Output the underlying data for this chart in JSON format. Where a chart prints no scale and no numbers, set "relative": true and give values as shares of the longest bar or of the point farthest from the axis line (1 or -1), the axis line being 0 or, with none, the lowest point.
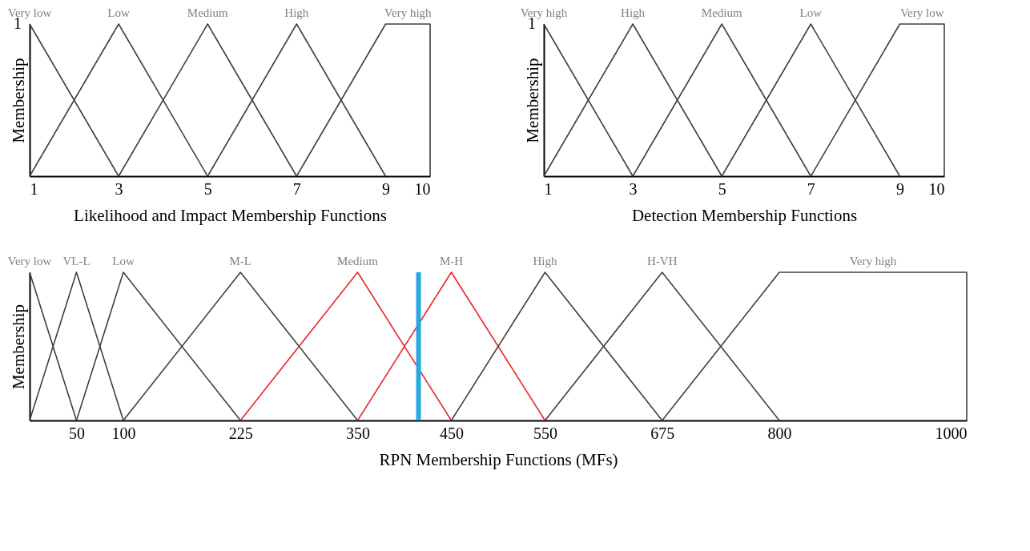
{
  "chart_data": [
    {
      "type": "line",
      "relative": true,
      "xlabel": "Likelihood and Impact Membership Functions",
      "ylabel": "Membership",
      "xlim": [
        1,
        10
      ],
      "xticks": [
        1,
        3,
        5,
        7,
        9,
        10
      ],
      "annotations": [
        {
          "text": "1",
          "x": 1,
          "y": 1
        }
      ],
      "series": [
        {
          "name": "Very low",
          "color": "#404040",
          "x": [
            1,
            3
          ],
          "values": [
            1,
            0
          ]
        },
        {
          "name": "Low",
          "color": "#404040",
          "x": [
            1,
            3,
            5
          ],
          "values": [
            0,
            1,
            0
          ]
        },
        {
          "name": "Medium",
          "color": "#404040",
          "x": [
            3,
            5,
            7
          ],
          "values": [
            0,
            1,
            0
          ]
        },
        {
          "name": "High",
          "color": "#404040",
          "x": [
            5,
            7,
            9
          ],
          "values": [
            0,
            1,
            0
          ]
        },
        {
          "name": "Very high",
          "color": "#404040",
          "x": [
            7,
            9,
            10,
            10
          ],
          "values": [
            0,
            1,
            1,
            0
          ]
        }
      ]
    },
    {
      "type": "line",
      "relative": true,
      "xlabel": "Detection Membership Functions",
      "ylabel": "Membership",
      "xlim": [
        1,
        10
      ],
      "xticks": [
        1,
        3,
        5,
        7,
        9,
        10
      ],
      "annotations": [
        {
          "text": "1",
          "x": 1,
          "y": 1
        }
      ],
      "series": [
        {
          "name": "Very high",
          "color": "#404040",
          "x": [
            1,
            3
          ],
          "values": [
            1,
            0
          ]
        },
        {
          "name": "High",
          "color": "#404040",
          "x": [
            1,
            3,
            5
          ],
          "values": [
            0,
            1,
            0
          ]
        },
        {
          "name": "Medium",
          "color": "#404040",
          "x": [
            3,
            5,
            7
          ],
          "values": [
            0,
            1,
            0
          ]
        },
        {
          "name": "Low",
          "color": "#404040",
          "x": [
            5,
            7,
            9
          ],
          "values": [
            0,
            1,
            0
          ]
        },
        {
          "name": "Very low",
          "color": "#404040",
          "x": [
            7,
            9,
            10,
            10
          ],
          "values": [
            0,
            1,
            1,
            0
          ]
        }
      ]
    },
    {
      "type": "line",
      "relative": true,
      "xlabel": "RPN Membership Functions (MFs)",
      "ylabel": "Membership",
      "xlim": [
        0,
        1000
      ],
      "xticks": [
        50,
        100,
        225,
        350,
        450,
        550,
        675,
        800,
        1000
      ],
      "ref_lines": [
        {
          "axis": "x",
          "value": 415,
          "color": "#29a8e0"
        }
      ],
      "series": [
        {
          "name": "Very low",
          "color": "#404040",
          "x": [
            0,
            50
          ],
          "values": [
            1,
            0
          ]
        },
        {
          "name": "VL-L",
          "color": "#404040",
          "x": [
            0,
            50,
            100
          ],
          "values": [
            0,
            1,
            0
          ]
        },
        {
          "name": "Low",
          "color": "#404040",
          "x": [
            50,
            100,
            225
          ],
          "values": [
            0,
            1,
            0
          ]
        },
        {
          "name": "M-L",
          "color": "#404040",
          "x": [
            100,
            225,
            350
          ],
          "values": [
            0,
            1,
            0
          ]
        },
        {
          "name": "Medium",
          "color": "#e8262b",
          "x": [
            225,
            350,
            450
          ],
          "values": [
            0,
            1,
            0
          ]
        },
        {
          "name": "M-H",
          "color": "#e8262b",
          "x": [
            350,
            450,
            550
          ],
          "values": [
            0,
            1,
            0
          ]
        },
        {
          "name": "High",
          "color": "#404040",
          "x": [
            450,
            550,
            675
          ],
          "values": [
            0,
            1,
            0
          ]
        },
        {
          "name": "H-VH",
          "color": "#404040",
          "x": [
            550,
            675,
            800
          ],
          "values": [
            0,
            1,
            0
          ]
        },
        {
          "name": "Very high",
          "color": "#404040",
          "x": [
            675,
            800,
            1000,
            1000
          ],
          "values": [
            0,
            1,
            1,
            0
          ]
        }
      ]
    }
  ]
}
